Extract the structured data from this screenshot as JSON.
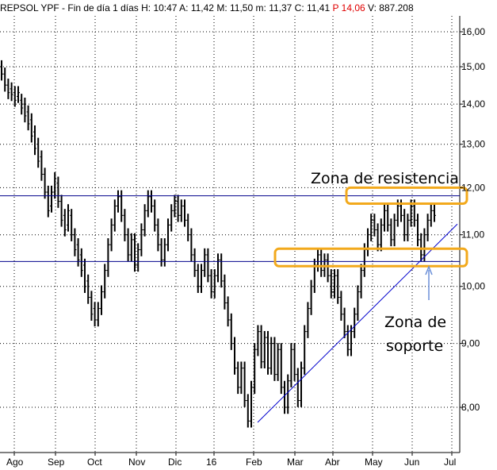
{
  "header": {
    "ticker": "REPSOL YPF",
    "sep1": " - ",
    "period": "Fin de día 1 días",
    "h_label": "H:",
    "h_value": "10:47",
    "a_label": "A:",
    "a_value": "11,42",
    "m_label": "M:",
    "m_value": "11,50",
    "min_label": "m:",
    "min_value": "11,37",
    "c_label": "C:",
    "c_value": "11,41",
    "p_label": "P",
    "p_value": "14,06",
    "v_label": "V:",
    "v_value": "887.208"
  },
  "colors": {
    "candles": "#000000",
    "resistance_line": "#00008b",
    "support_line": "#00008b",
    "trendline": "#0000cd",
    "zone_box": "#f2a91c",
    "arrow": "#6a8fd8",
    "grid": "#000000",
    "negative_text": "#e00000"
  },
  "annotations": {
    "resistance": "Zona de resistencia",
    "support_line1": "Zona de",
    "support_line2": "soporte"
  },
  "chart_data": {
    "type": "ohlc",
    "y_axis": {
      "position": "right",
      "ticks": [
        "16,00",
        "15,00",
        "14,00",
        "13,00",
        "12,00",
        "11,00",
        "10,00",
        "9,00",
        "8,00"
      ],
      "tick_values": [
        16,
        15,
        14,
        13,
        12,
        11,
        10,
        9,
        8
      ],
      "scale": "log",
      "ylim": [
        7.55,
        16.35
      ]
    },
    "x_axis": {
      "ticks": [
        "Ago",
        "Sep",
        "Oct",
        "Nov",
        "Dic",
        "16",
        "Feb",
        "Mar",
        "Abr",
        "May",
        "Jun",
        "Jul"
      ]
    },
    "grid": "dotted",
    "horizontal_lines": [
      {
        "name": "resistencia",
        "value": 11.82
      },
      {
        "name": "soporte",
        "value": 10.47
      }
    ],
    "zones": [
      {
        "name": "resistencia",
        "from_month": "Mar",
        "to_month": "Jun",
        "low": 11.65,
        "high": 12.0
      },
      {
        "name": "soporte",
        "from_month": "Mar",
        "to_month": "Jun",
        "low": 10.38,
        "high": 10.72
      }
    ],
    "trendline": [
      {
        "month": "Feb",
        "value": 7.78
      },
      {
        "month": "Jun",
        "value": 11.12
      }
    ],
    "series": [
      {
        "values": [
          [
            15.0,
            14.8
          ],
          [
            14.8,
            14.5
          ],
          [
            14.5,
            14.3
          ],
          [
            14.4,
            14.25
          ],
          [
            14.3,
            14.1
          ],
          [
            14.2,
            14.3
          ],
          [
            14.1,
            13.9
          ],
          [
            14.0,
            13.7
          ],
          [
            13.8,
            13.5
          ],
          [
            13.6,
            13.2
          ],
          [
            13.3,
            12.9
          ],
          [
            13.0,
            12.6
          ],
          [
            12.7,
            12.3
          ],
          [
            12.3,
            11.9
          ],
          [
            11.9,
            11.5
          ],
          [
            11.6,
            11.9
          ],
          [
            11.9,
            12.2
          ],
          [
            12.1,
            11.7
          ],
          [
            11.7,
            11.3
          ],
          [
            11.4,
            11.1
          ],
          [
            11.2,
            11.5
          ],
          [
            11.4,
            11.0
          ],
          [
            11.0,
            10.7
          ],
          [
            10.8,
            10.5
          ],
          [
            10.6,
            10.3
          ],
          [
            10.4,
            10.0
          ],
          [
            10.1,
            9.8
          ],
          [
            9.8,
            9.5
          ],
          [
            9.6,
            9.4
          ],
          [
            9.4,
            9.6
          ],
          [
            9.6,
            9.9
          ],
          [
            9.9,
            10.3
          ],
          [
            10.3,
            10.8
          ],
          [
            10.8,
            11.2
          ],
          [
            11.2,
            11.6
          ],
          [
            11.6,
            11.8
          ],
          [
            11.8,
            11.4
          ],
          [
            11.4,
            11.0
          ],
          [
            11.0,
            10.6
          ],
          [
            10.6,
            10.9
          ],
          [
            10.9,
            10.4
          ],
          [
            10.4,
            10.7
          ],
          [
            10.7,
            11.1
          ],
          [
            11.1,
            11.5
          ],
          [
            11.5,
            11.8
          ],
          [
            11.8,
            11.6
          ],
          [
            11.6,
            11.2
          ],
          [
            11.2,
            10.8
          ],
          [
            10.8,
            10.5
          ],
          [
            10.5,
            10.8
          ],
          [
            10.8,
            11.2
          ],
          [
            11.2,
            11.5
          ],
          [
            11.5,
            11.7
          ],
          [
            11.7,
            11.4
          ],
          [
            11.4,
            11.6
          ],
          [
            11.6,
            11.3
          ],
          [
            11.3,
            11.0
          ],
          [
            11.0,
            10.6
          ],
          [
            10.6,
            10.3
          ],
          [
            10.3,
            10.0
          ],
          [
            10.0,
            10.3
          ],
          [
            10.3,
            10.6
          ],
          [
            10.6,
            10.2
          ],
          [
            10.2,
            9.9
          ],
          [
            9.9,
            10.2
          ],
          [
            10.2,
            10.5
          ],
          [
            10.5,
            10.1
          ],
          [
            10.1,
            9.7
          ],
          [
            9.7,
            9.4
          ],
          [
            9.4,
            9.0
          ],
          [
            9.0,
            8.6
          ],
          [
            8.6,
            8.3
          ],
          [
            8.3,
            8.6
          ],
          [
            8.6,
            8.1
          ],
          [
            8.1,
            7.8
          ],
          [
            7.8,
            8.3
          ],
          [
            8.3,
            8.9
          ],
          [
            8.9,
            9.2
          ],
          [
            9.2,
            8.7
          ],
          [
            8.7,
            9.1
          ],
          [
            9.1,
            8.6
          ],
          [
            8.6,
            9.0
          ],
          [
            9.0,
            8.5
          ],
          [
            8.5,
            8.9
          ],
          [
            8.9,
            8.3
          ],
          [
            8.3,
            8.0
          ],
          [
            8.0,
            8.4
          ],
          [
            8.4,
            8.9
          ],
          [
            8.9,
            8.5
          ],
          [
            8.5,
            8.1
          ],
          [
            8.1,
            8.6
          ],
          [
            8.6,
            9.2
          ],
          [
            9.2,
            9.6
          ],
          [
            9.6,
            10.0
          ],
          [
            10.0,
            10.4
          ],
          [
            10.4,
            10.6
          ],
          [
            10.6,
            10.3
          ],
          [
            10.3,
            10.5
          ],
          [
            10.5,
            10.2
          ],
          [
            10.2,
            9.9
          ],
          [
            9.9,
            10.2
          ],
          [
            10.2,
            9.8
          ],
          [
            9.8,
            9.5
          ],
          [
            9.5,
            9.2
          ],
          [
            9.2,
            8.9
          ],
          [
            8.9,
            9.2
          ],
          [
            9.2,
            9.5
          ],
          [
            9.5,
            9.9
          ],
          [
            9.9,
            10.3
          ],
          [
            10.3,
            10.7
          ],
          [
            10.7,
            11.0
          ],
          [
            11.0,
            11.3
          ],
          [
            11.3,
            11.1
          ],
          [
            11.1,
            10.8
          ],
          [
            10.8,
            11.2
          ],
          [
            11.2,
            11.5
          ],
          [
            11.5,
            11.2
          ],
          [
            11.2,
            10.9
          ],
          [
            10.9,
            11.3
          ],
          [
            11.3,
            11.6
          ],
          [
            11.6,
            11.4
          ],
          [
            11.4,
            11.0
          ],
          [
            11.0,
            11.3
          ],
          [
            11.3,
            11.6
          ],
          [
            11.6,
            11.3
          ],
          [
            11.3,
            10.9
          ],
          [
            10.9,
            10.6
          ],
          [
            10.6,
            11.0
          ],
          [
            11.0,
            11.3
          ],
          [
            11.3,
            11.5
          ],
          [
            11.5,
            11.4
          ]
        ]
      }
    ]
  }
}
